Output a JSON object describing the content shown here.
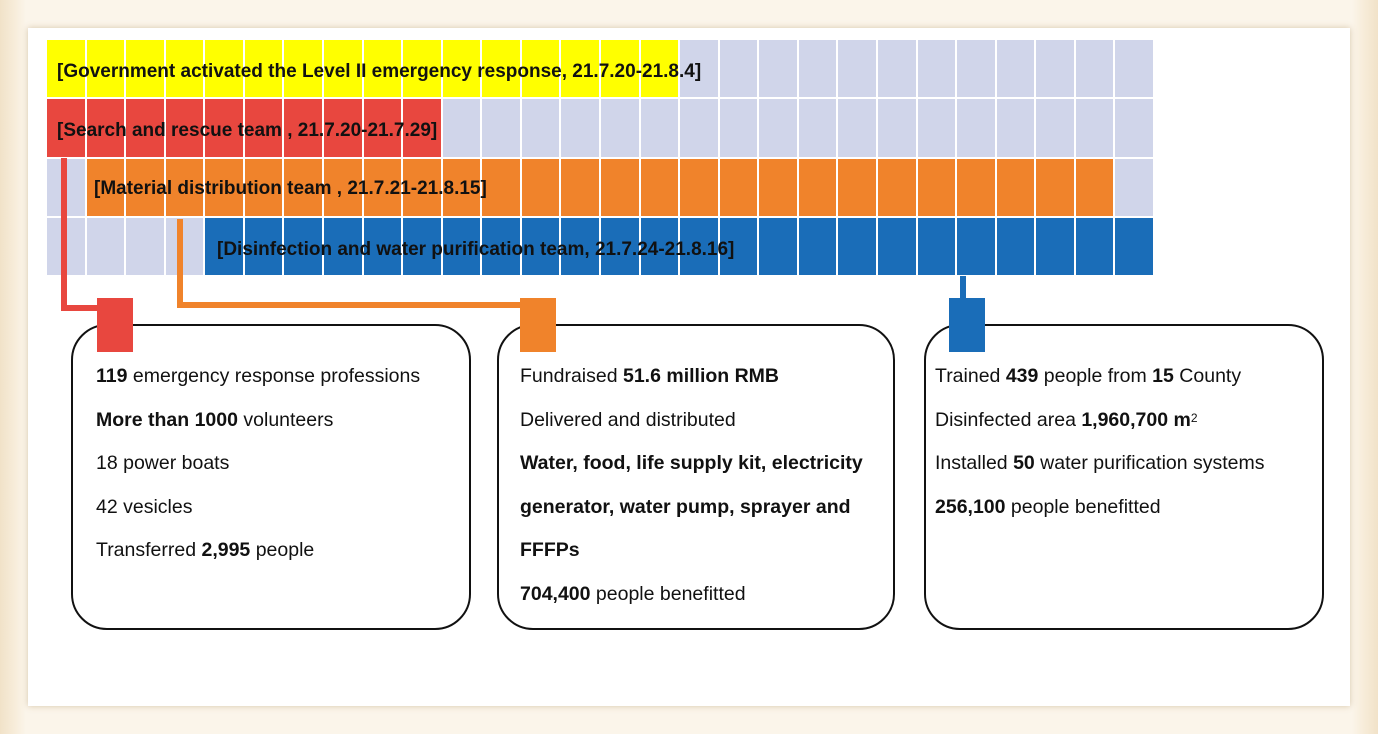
{
  "bars": [
    {
      "label": "[Government activated the Level II emergency response, 21.7.20-21.8.4]",
      "color": "#ffff00",
      "start_col": 0,
      "end_col": 16
    },
    {
      "label": "[Search and rescue team , 21.7.20-21.7.29]",
      "color": "#e8473f",
      "start_col": 0,
      "end_col": 10
    },
    {
      "label": "[Material distribution team , 21.7.21-21.8.15]",
      "color": "#f0832b",
      "start_col": 1,
      "end_col": 27
    },
    {
      "label": "[Disinfection and water purification team, 21.7.24-21.8.16]",
      "color": "#1a6db8",
      "start_col": 4,
      "end_col": 28
    }
  ],
  "grid": {
    "columns": 28,
    "empty_color": "#d0d5ea"
  },
  "cards": [
    {
      "color": "#e8473f",
      "lines": [
        [
          {
            "b": "119"
          },
          {
            "t": " emergency response professions"
          }
        ],
        [
          {
            "b": "More than 1000"
          },
          {
            "t": " volunteers"
          }
        ],
        [
          {
            "t": "18 power boats"
          }
        ],
        [
          {
            "t": "42 vesicles"
          }
        ],
        [
          {
            "t": "Transferred "
          },
          {
            "b": "2,995"
          },
          {
            "t": " people"
          }
        ]
      ]
    },
    {
      "color": "#f0832b",
      "lines": [
        [
          {
            "t": "Fundraised "
          },
          {
            "b": "51.6 million RMB"
          }
        ],
        [
          {
            "t": "Delivered and distributed"
          }
        ],
        [
          {
            "b": "Water, food, life supply kit, electricity"
          }
        ],
        [
          {
            "b": "generator, water pump, sprayer and"
          }
        ],
        [
          {
            "b": "FFFPs"
          }
        ],
        [
          {
            "b": "704,400"
          },
          {
            "t": " people benefitted"
          }
        ]
      ]
    },
    {
      "color": "#1a6db8",
      "lines": [
        [
          {
            "t": "Trained "
          },
          {
            "b": "439"
          },
          {
            "t": " people from "
          },
          {
            "b": "15"
          },
          {
            "t": " County"
          }
        ],
        [
          {
            "t": "Disinfected area "
          },
          {
            "b": "1,960,700 m"
          },
          {
            "sup": "2"
          }
        ],
        [
          {
            "t": "Installed "
          },
          {
            "b": "50"
          },
          {
            "t": " water purification systems"
          }
        ],
        [
          {
            "b": "256,100"
          },
          {
            "t": " people benefitted"
          }
        ]
      ]
    }
  ]
}
